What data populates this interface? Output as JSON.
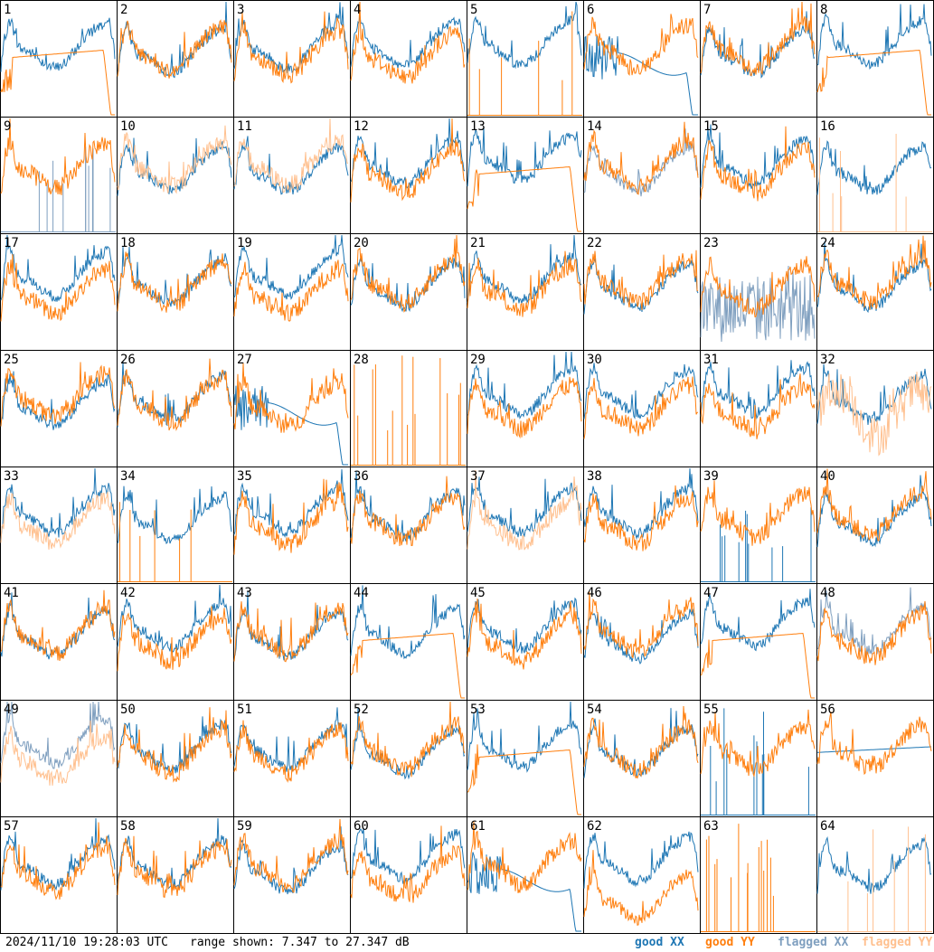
{
  "chart_data": {
    "type": "line",
    "layout": "8x8 small multiples",
    "panel_labels": [
      "1",
      "2",
      "3",
      "4",
      "5",
      "6",
      "7",
      "8",
      "9",
      "10",
      "11",
      "12",
      "13",
      "14",
      "15",
      "16",
      "17",
      "18",
      "19",
      "20",
      "21",
      "22",
      "23",
      "24",
      "25",
      "26",
      "27",
      "28",
      "29",
      "30",
      "31",
      "32",
      "33",
      "34",
      "35",
      "36",
      "37",
      "38",
      "39",
      "40",
      "41",
      "42",
      "43",
      "44",
      "45",
      "46",
      "47",
      "48",
      "49",
      "50",
      "51",
      "52",
      "53",
      "54",
      "55",
      "56",
      "57",
      "58",
      "59",
      "60",
      "61",
      "62",
      "63",
      "64"
    ],
    "ylim": [
      7.347,
      27.347
    ],
    "yunit": "dB",
    "series_styles": {
      "good XX": "#1f77b4",
      "good YY": "#ff7f0e",
      "flagged XX": "#7f9fbf",
      "flagged YY": "#ffc08f"
    },
    "panel_states": {
      "1": "xx-flat-yy",
      "5": "xx-only-yy-spikes",
      "6": "xx-dip",
      "8": "yy-flat",
      "9": "xx-flagged-spikes",
      "10": "yy-flagged",
      "11": "yy-flagged",
      "12": "xx-dropoff",
      "13": "yy-flat",
      "14": "xx-flagged",
      "16": "xx-only-yy-flagged-spikes",
      "23": "xx-flagged-noisy",
      "27": "xx-dip",
      "28": "yy-spikes-only",
      "32": "yy-flagged-noisy",
      "33": "yy-flagged",
      "34": "xx-only-yy-spikes",
      "37": "yy-flagged",
      "39": "yy-only-xx-spikes",
      "44": "yy-flat",
      "45": "mismatch",
      "47": "yy-flat",
      "48": "xx-flagged",
      "49": "both-flagged",
      "53": "yy-flat",
      "55": "yy-only-xx-spikes",
      "56": "xx-flat",
      "61": "xx-dip",
      "62": "yy-low",
      "63": "yy-spikes-only",
      "64": "xx-only-yy-flagged-spikes"
    }
  },
  "footer": {
    "timestamp": "2024/11/10 19:28:03 UTC",
    "range_text": "range shown: 7.347 to 27.347 dB",
    "legend": [
      {
        "label": "good XX",
        "color": "#1f77b4"
      },
      {
        "label": "good YY",
        "color": "#ff7f0e"
      },
      {
        "label": "flagged XX",
        "color": "#7f9fbf"
      },
      {
        "label": "flagged YY",
        "color": "#ffc08f"
      }
    ]
  }
}
